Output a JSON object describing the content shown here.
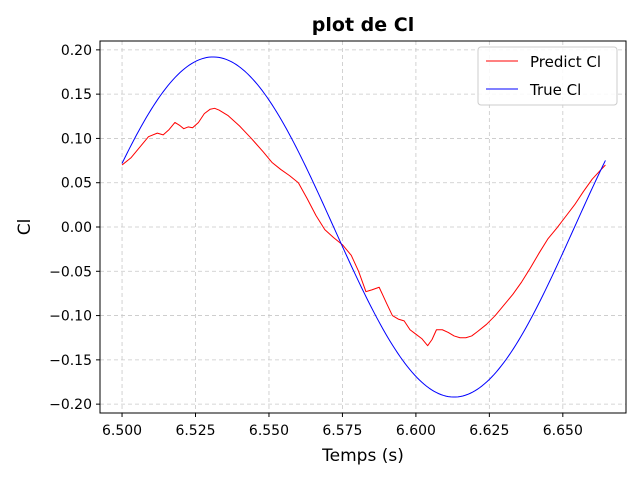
{
  "chart_data": {
    "type": "line",
    "title": "plot de Cl",
    "xlabel": "Temps (s)",
    "ylabel": "Cl",
    "xlim": [
      6.4925,
      6.6715
    ],
    "ylim": [
      -0.21,
      0.21
    ],
    "xticks": [
      6.5,
      6.525,
      6.55,
      6.575,
      6.6,
      6.625,
      6.65
    ],
    "xtick_labels": [
      "6.500",
      "6.525",
      "6.550",
      "6.575",
      "6.600",
      "6.625",
      "6.650"
    ],
    "yticks": [
      0.2,
      0.15,
      0.1,
      0.05,
      0.0,
      -0.05,
      -0.1,
      -0.15,
      -0.2
    ],
    "ytick_labels": [
      "0.20",
      "0.15",
      "0.10",
      "0.05",
      "0.00",
      "−0.05",
      "−0.10",
      "−0.15",
      "−0.20"
    ],
    "grid": true,
    "legend_position": "top-right",
    "series": [
      {
        "name": "Predict Cl",
        "color": "#ff0000",
        "x": [
          6.5,
          6.503,
          6.506,
          6.509,
          6.512,
          6.514,
          6.516,
          6.518,
          6.5195,
          6.521,
          6.5225,
          6.524,
          6.526,
          6.528,
          6.53,
          6.5315,
          6.533,
          6.536,
          6.54,
          6.544,
          6.548,
          6.551,
          6.554,
          6.557,
          6.56,
          6.563,
          6.566,
          6.569,
          6.572,
          6.575,
          6.578,
          6.5805,
          6.583,
          6.585,
          6.5875,
          6.59,
          6.592,
          6.594,
          6.596,
          6.598,
          6.6,
          6.602,
          6.604,
          6.6055,
          6.607,
          6.609,
          6.611,
          6.613,
          6.615,
          6.617,
          6.619,
          6.621,
          6.624,
          6.627,
          6.63,
          6.633,
          6.636,
          6.639,
          6.642,
          6.645,
          6.648,
          6.651,
          6.654,
          6.657,
          6.66,
          6.6625,
          6.6645
        ],
        "y": [
          0.07,
          0.078,
          0.09,
          0.102,
          0.106,
          0.104,
          0.11,
          0.118,
          0.115,
          0.111,
          0.113,
          0.112,
          0.118,
          0.128,
          0.133,
          0.134,
          0.132,
          0.126,
          0.114,
          0.1,
          0.085,
          0.073,
          0.065,
          0.058,
          0.05,
          0.032,
          0.013,
          -0.003,
          -0.012,
          -0.02,
          -0.032,
          -0.05,
          -0.073,
          -0.071,
          -0.068,
          -0.086,
          -0.1,
          -0.104,
          -0.106,
          -0.116,
          -0.121,
          -0.126,
          -0.134,
          -0.127,
          -0.116,
          -0.116,
          -0.119,
          -0.123,
          -0.125,
          -0.125,
          -0.123,
          -0.118,
          -0.11,
          -0.1,
          -0.088,
          -0.076,
          -0.062,
          -0.046,
          -0.029,
          -0.013,
          -0.001,
          0.012,
          0.025,
          0.04,
          0.054,
          0.063,
          0.07
        ]
      },
      {
        "name": "True Cl",
        "color": "#0000ff",
        "sine": {
          "amplitude": 0.192,
          "center": 6.572,
          "half_period": 0.082,
          "x_start": 6.5,
          "x_end": 6.6645
        }
      }
    ]
  }
}
